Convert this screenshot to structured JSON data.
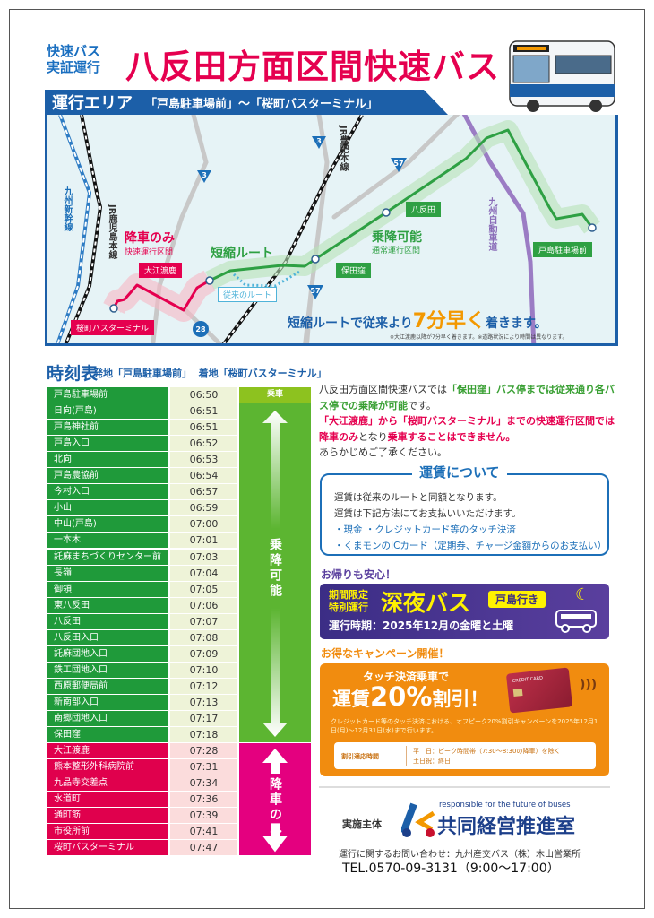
{
  "header": {
    "lead_line1": "快速バス",
    "lead_line2": "実証運行",
    "title": "八反田方面区間快速バス"
  },
  "area": {
    "heading": "運行エリア",
    "range": "「戸島駐車場前」～「桜町バスターミナル」"
  },
  "map": {
    "labels": {
      "drop_only": "降車のみ",
      "rapid_section": "快速運行区間",
      "short_route": "短縮ルート",
      "board_alight": "乗降可能",
      "normal_section": "通常運行区間",
      "old_route": "従来のルート",
      "jr_kagoshima": "JR鹿児島本線",
      "shinkansen": "九州新幹線",
      "jr_hohi": "JR豊肥本線",
      "expressway": "九州自動車道"
    },
    "stops": {
      "toshima": "戸島駐車場前",
      "yatsubota": "八反田",
      "hotakubo": "保田窪",
      "oetoroku": "大江渡鹿",
      "sakuramachi": "桜町バスターミナル"
    },
    "routes": [
      "3",
      "3",
      "57",
      "57",
      "28"
    ],
    "message_pre": "短縮ルートで従来より",
    "message_em": "7分早く",
    "message_post": "着きます。",
    "note": "※大江渡鹿以降が7分早く着きます。※道路状況により時間は異なります。",
    "colors": {
      "normal": "#2ea043",
      "rapid": "#e5004f",
      "old": "#4fb3d9",
      "expressway": "#9b7cc4"
    }
  },
  "timetable": {
    "title": "時刻表",
    "origin": "発地「戸島駐車場前」",
    "destination": "着地「桜町バスターミナル」",
    "board_label": "乗車",
    "board_alight_label": "乗降可能",
    "drop_only_label": "降車のみ",
    "rows": [
      {
        "stop": "戸島駐車場前",
        "time": "06:50",
        "section": "board"
      },
      {
        "stop": "日向(戸島)",
        "time": "06:51",
        "section": "normal"
      },
      {
        "stop": "戸島神社前",
        "time": "06:51",
        "section": "normal"
      },
      {
        "stop": "戸島入口",
        "time": "06:52",
        "section": "normal"
      },
      {
        "stop": "北向",
        "time": "06:53",
        "section": "normal"
      },
      {
        "stop": "戸島農協前",
        "time": "06:54",
        "section": "normal"
      },
      {
        "stop": "今村入口",
        "time": "06:57",
        "section": "normal"
      },
      {
        "stop": "小山",
        "time": "06:59",
        "section": "normal"
      },
      {
        "stop": "中山(戸島)",
        "time": "07:00",
        "section": "normal"
      },
      {
        "stop": "一本木",
        "time": "07:01",
        "section": "normal"
      },
      {
        "stop": "託麻まちづくりセンター前",
        "time": "07:03",
        "section": "normal"
      },
      {
        "stop": "長嶺",
        "time": "07:04",
        "section": "normal"
      },
      {
        "stop": "御領",
        "time": "07:05",
        "section": "normal"
      },
      {
        "stop": "東八反田",
        "time": "07:06",
        "section": "normal"
      },
      {
        "stop": "八反田",
        "time": "07:07",
        "section": "normal"
      },
      {
        "stop": "八反田入口",
        "time": "07:08",
        "section": "normal"
      },
      {
        "stop": "託麻団地入口",
        "time": "07:09",
        "section": "normal"
      },
      {
        "stop": "鉄工団地入口",
        "time": "07:10",
        "section": "normal"
      },
      {
        "stop": "西原郵便局前",
        "time": "07:12",
        "section": "normal"
      },
      {
        "stop": "新南部入口",
        "time": "07:13",
        "section": "normal"
      },
      {
        "stop": "南郷団地入口",
        "time": "07:17",
        "section": "normal"
      },
      {
        "stop": "保田窪",
        "time": "07:18",
        "section": "normal"
      },
      {
        "stop": "大江渡鹿",
        "time": "07:28",
        "section": "rapid"
      },
      {
        "stop": "熊本整形外科病院前",
        "time": "07:31",
        "section": "rapid"
      },
      {
        "stop": "九品寺交差点",
        "time": "07:34",
        "section": "rapid"
      },
      {
        "stop": "水道町",
        "time": "07:36",
        "section": "rapid"
      },
      {
        "stop": "通町筋",
        "time": "07:39",
        "section": "rapid"
      },
      {
        "stop": "市役所前",
        "time": "07:41",
        "section": "rapid"
      },
      {
        "stop": "桜町バスターミナル",
        "time": "07:47",
        "section": "rapid"
      }
    ],
    "colors": {
      "normal_name": "#1f9a3a",
      "normal_time": "#eef3d8",
      "rapid_name": "#e0004d",
      "rapid_time": "#fbdcdc",
      "board": "#8dc21f",
      "normal_side": "#5cb531",
      "rapid_side": "#e4007f"
    }
  },
  "notice": {
    "p1a": "八反田方面区間快速バスでは",
    "p1b": "「保田窪」バス停までは従来通り各バス停での乗降が可能",
    "p1c": "です。",
    "p2a": "「大江渡鹿」から「桜町バスターミナル」までの快速運行区間では降車のみ",
    "p2b": "となり",
    "p2c": "乗車することはできません。",
    "p3": "あらかじめご了承ください。"
  },
  "fare": {
    "title": "運賃について",
    "line1": "運賃は従来のルートと同額となります。",
    "line2": "運賃は下記方法にてお支払いいただけます。",
    "line3": "・現金 ・クレジットカード等のタッチ決済",
    "line4": "・くまモンのICカード（定期券、チャージ金額からのお支払い）"
  },
  "night": {
    "label": "お帰りも安心！",
    "tag1": "期間限定",
    "tag2": "特別運行",
    "title": "深夜バス",
    "dest": "戸島行き",
    "period": "運行時期：2025年12月の金曜と土曜"
  },
  "campaign": {
    "label": "お得なキャンペーン開催！",
    "sub": "タッチ決済乗車で",
    "headline_a": "運賃",
    "headline_b": "20%",
    "headline_c": "割引！",
    "desc": "クレジットカード等のタッチ決済における、オフピーク20%割引キャンペーンを2025年12月1日(月)～12月31日(水)まで行います。",
    "hours_label": "割引適応時間",
    "hours_1": "平　日：ピーク時間帯（7:30～8:30の降車）を除く",
    "hours_2": "土日祝：終日",
    "card_text": "CREDIT CARD"
  },
  "footer": {
    "sponsor_label": "実施主体",
    "logo_tagline": "responsible for the future of buses",
    "logo_name": "共同経営推進室",
    "contact": "運行に関するお問い合わせ：九州産交バス（株）木山営業所",
    "tel": "TEL.0570-09-3131（9:00～17:00）"
  }
}
